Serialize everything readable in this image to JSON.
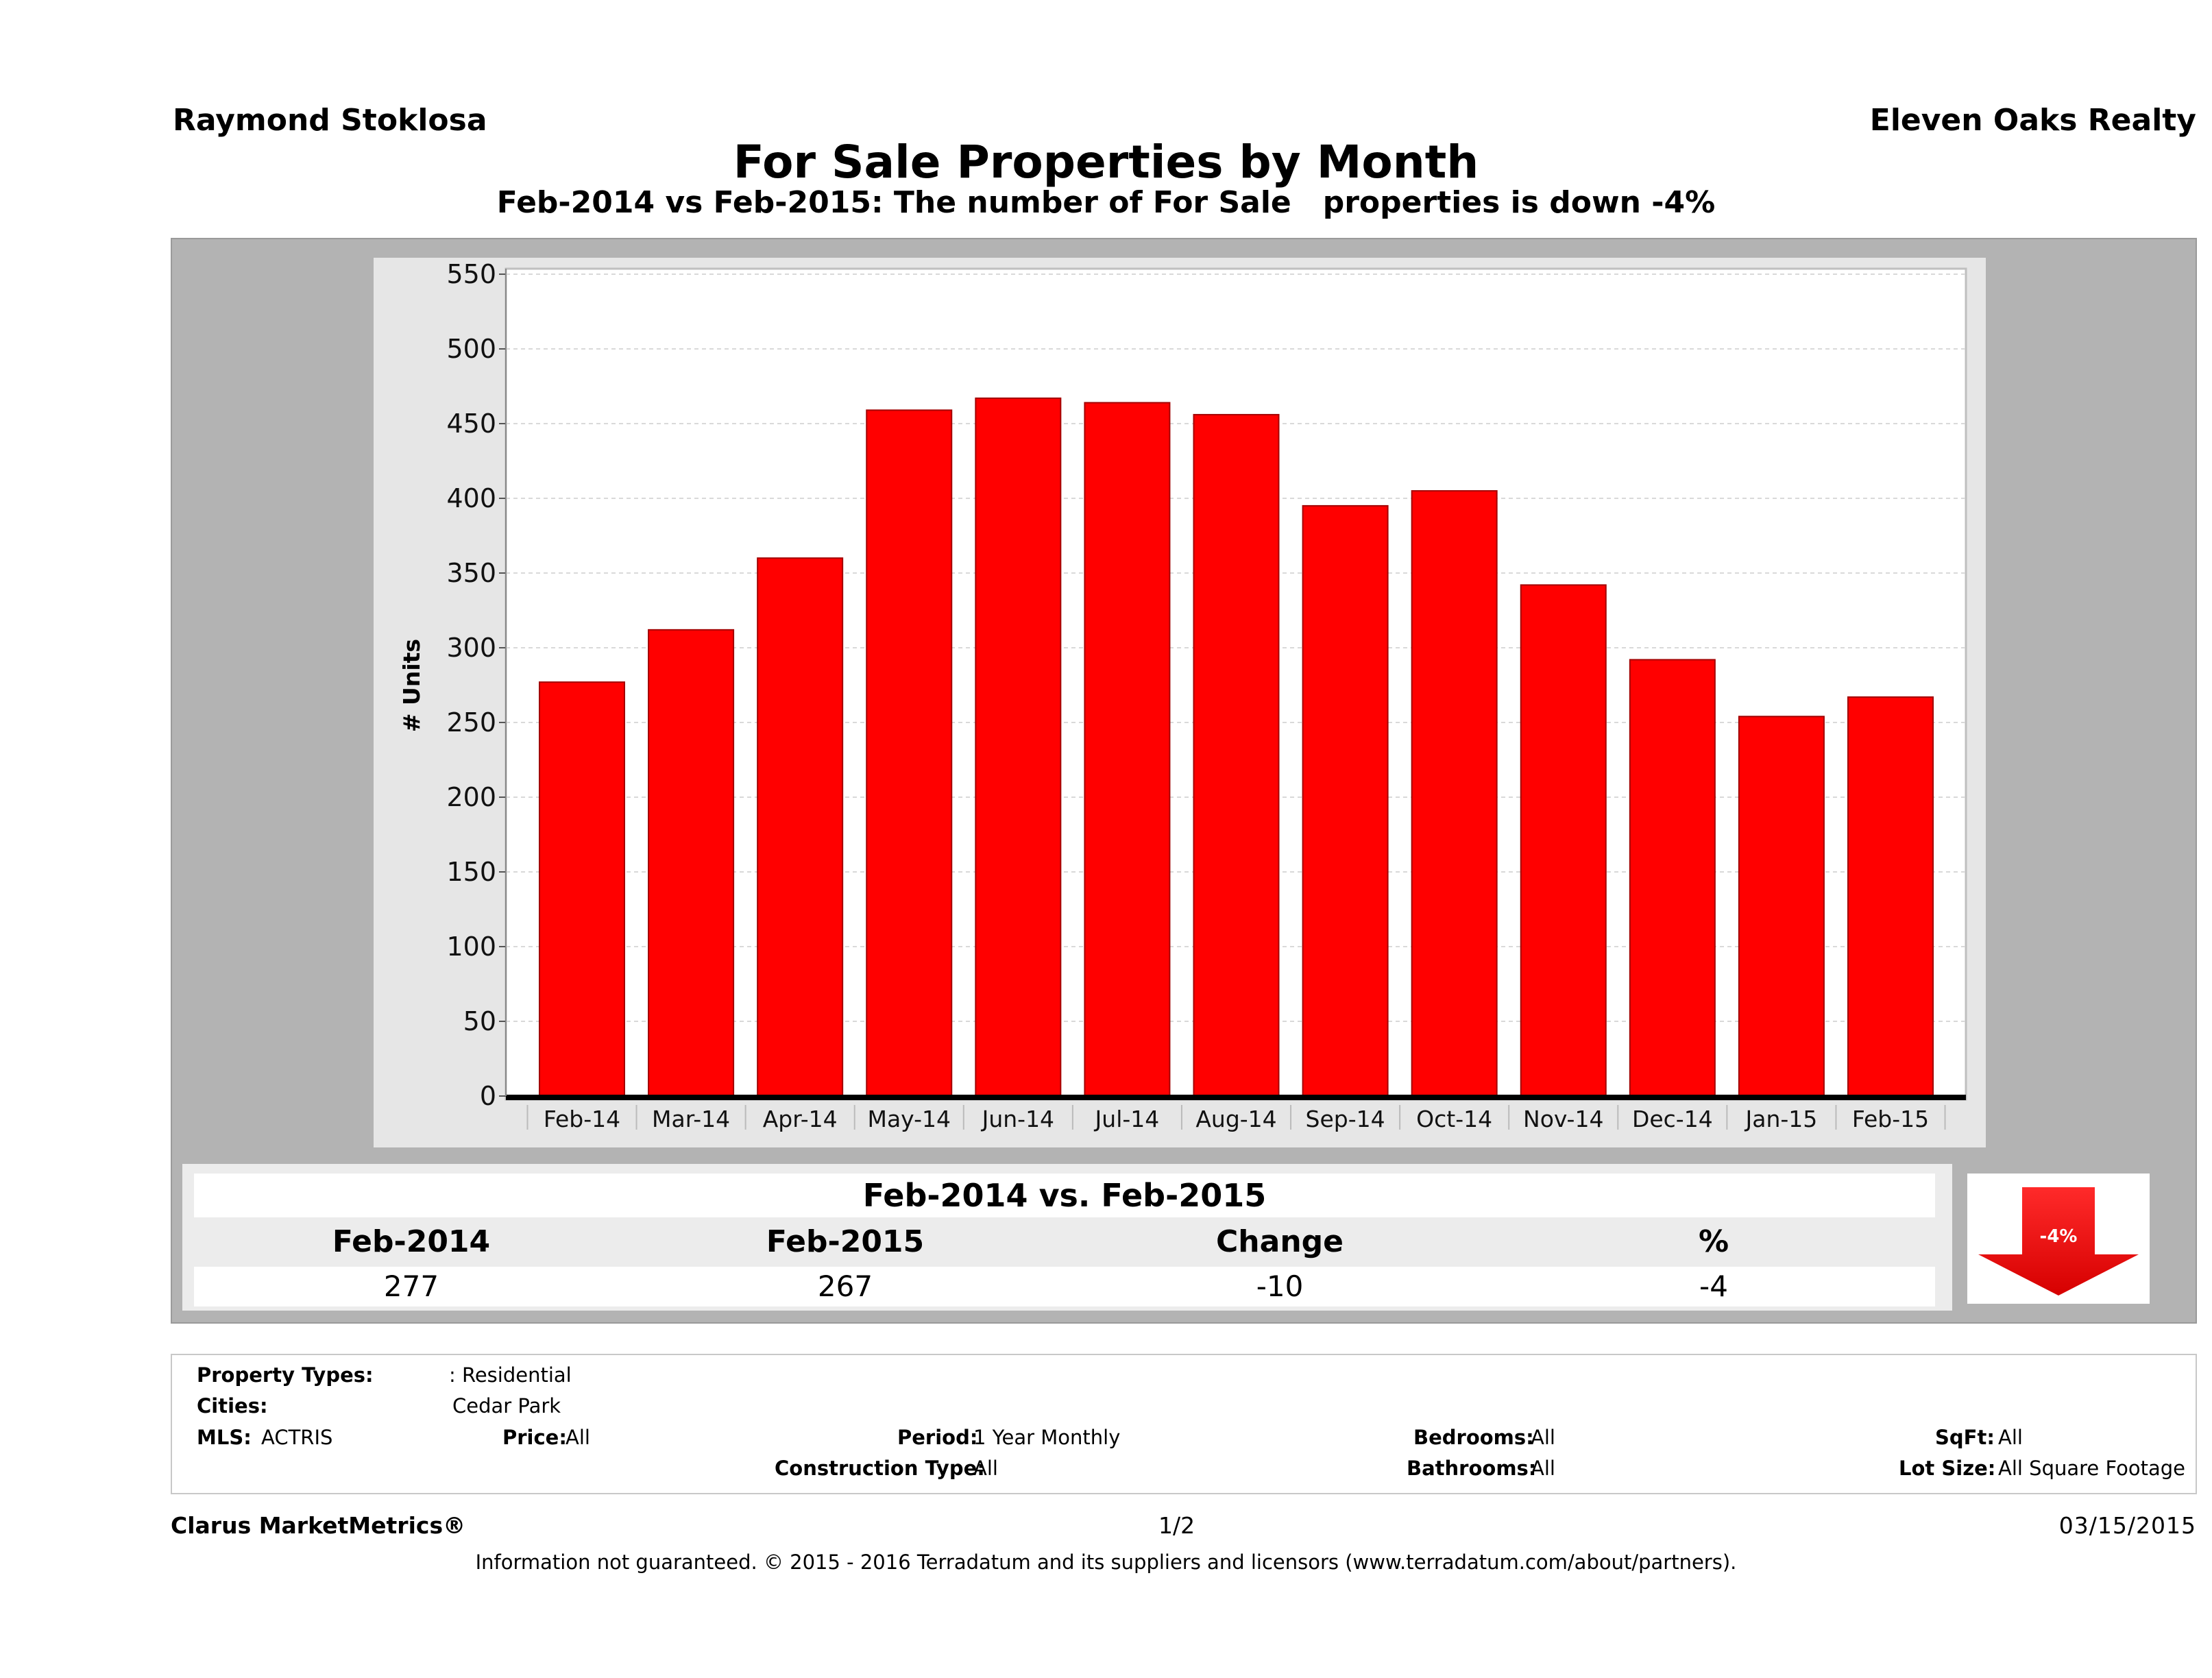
{
  "header": {
    "agent_name": "Raymond Stoklosa",
    "brokerage": "Eleven Oaks Realty",
    "title": "For Sale Properties by Month",
    "subtitle": "Feb-2014 vs Feb-2015: The number of For Sale   properties is down -4%"
  },
  "chart_data": {
    "type": "bar",
    "categories": [
      "Feb-14",
      "Mar-14",
      "Apr-14",
      "May-14",
      "Jun-14",
      "Jul-14",
      "Aug-14",
      "Sep-14",
      "Oct-14",
      "Nov-14",
      "Dec-14",
      "Jan-15",
      "Feb-15"
    ],
    "values": [
      277,
      312,
      360,
      459,
      467,
      464,
      456,
      395,
      405,
      342,
      292,
      254,
      267
    ],
    "ylabel": "# Units",
    "xlabel": "",
    "ylim": [
      0,
      550
    ],
    "yticks": [
      0,
      50,
      100,
      150,
      200,
      250,
      300,
      350,
      400,
      450,
      500,
      550
    ],
    "grid": true,
    "bar_color": "#ff0000"
  },
  "summary": {
    "title": "Feb-2014 vs. Feb-2015",
    "headers": [
      "Feb-2014",
      "Feb-2015",
      "Change",
      "%"
    ],
    "values": [
      "277",
      "267",
      "-10",
      "-4"
    ],
    "arrow_label": "-4%",
    "arrow_color": "#ff0000"
  },
  "criteria": {
    "property_types_label": "Property Types:",
    "property_types_value": ": Residential",
    "cities_label": "Cities:",
    "cities_value": "Cedar Park",
    "mls_label": "MLS:",
    "mls_value": "ACTRIS",
    "price_label": "Price:",
    "price_value": "All",
    "period_label": "Period:",
    "period_value": "1 Year Monthly",
    "construction_label": "Construction Type:",
    "construction_value": "All",
    "bedrooms_label": "Bedrooms:",
    "bedrooms_value": "All",
    "bathrooms_label": "Bathrooms:",
    "bathrooms_value": "All",
    "sqft_label": "SqFt:",
    "sqft_value": "All",
    "lotsize_label": "Lot Size:",
    "lotsize_value": "All Square Footage"
  },
  "footer": {
    "product": "Clarus MarketMetrics®",
    "page": "1/2",
    "date": "03/15/2015",
    "disclaimer": "Information not guaranteed. © 2015 - 2016 Terradatum and its suppliers and licensors (www.terradatum.com/about/partners)."
  }
}
